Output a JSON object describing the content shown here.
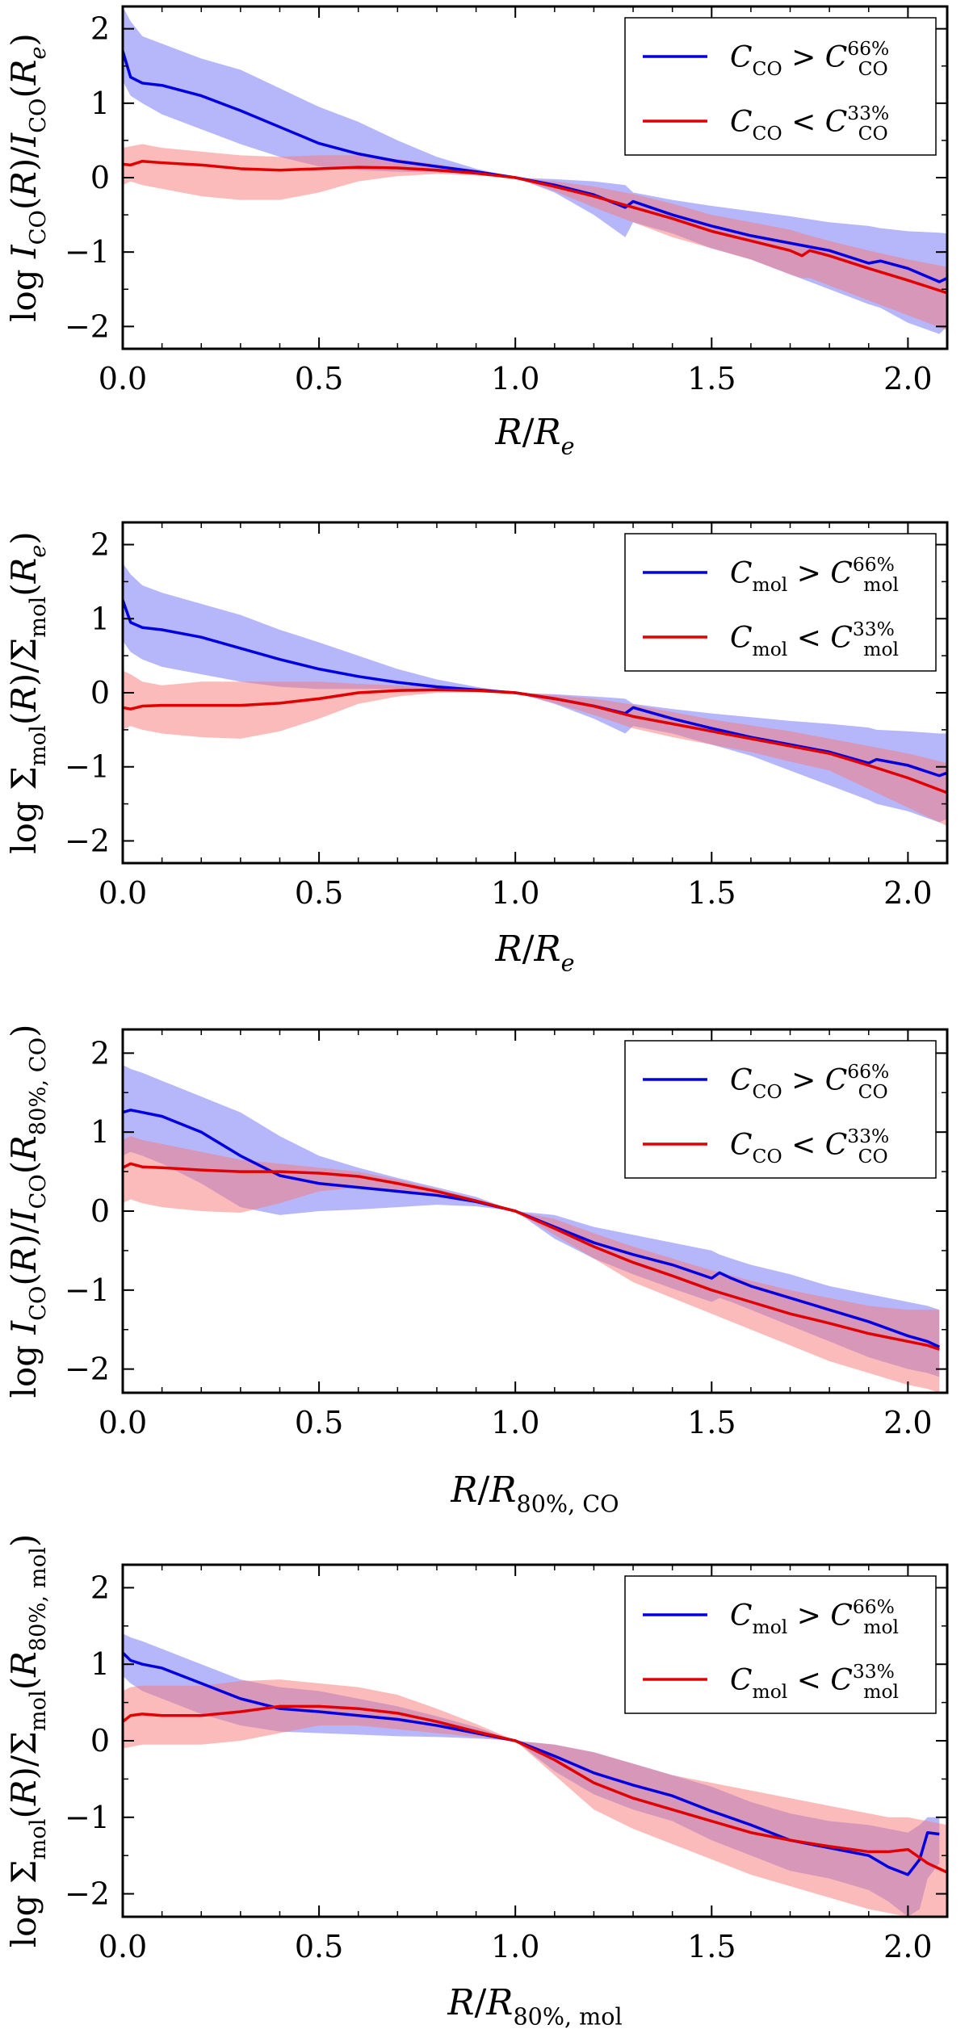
{
  "colors": {
    "blue": "#0000e0",
    "red": "#e00000",
    "blue_band": "#6e6ef8",
    "red_band": "#f87878"
  },
  "chart_data": [
    {
      "type": "line",
      "xlabel": "R/Re",
      "ylabel": "log ICO(R)/ICO(Re)",
      "xlim": [
        0.0,
        2.1
      ],
      "ylim": [
        -2.3,
        2.3
      ],
      "x_ticks": [
        "0.0",
        "0.5",
        "1.0",
        "1.5",
        "2.0"
      ],
      "y_ticks": [
        "2",
        "1",
        "0",
        "−1",
        "−2"
      ],
      "legend_position": "top-right",
      "series": [
        {
          "name": "CCO > C66%CO",
          "color": "blue",
          "x": [
            0.0,
            0.02,
            0.05,
            0.1,
            0.2,
            0.3,
            0.4,
            0.5,
            0.6,
            0.7,
            0.8,
            0.9,
            1.0,
            1.1,
            1.2,
            1.28,
            1.3,
            1.4,
            1.5,
            1.6,
            1.7,
            1.8,
            1.9,
            1.93,
            2.0,
            2.08,
            2.1
          ],
          "y": [
            1.7,
            1.35,
            1.27,
            1.24,
            1.1,
            0.9,
            0.68,
            0.46,
            0.32,
            0.22,
            0.15,
            0.08,
            0.0,
            -0.1,
            -0.23,
            -0.4,
            -0.32,
            -0.5,
            -0.65,
            -0.78,
            -0.88,
            -0.98,
            -1.15,
            -1.12,
            -1.22,
            -1.4,
            -1.35
          ],
          "band_upper": [
            2.3,
            2.1,
            1.9,
            1.8,
            1.6,
            1.45,
            1.2,
            0.95,
            0.75,
            0.5,
            0.28,
            0.12,
            0.0,
            -0.02,
            -0.05,
            -0.1,
            -0.2,
            -0.3,
            -0.38,
            -0.45,
            -0.52,
            -0.6,
            -0.65,
            -0.68,
            -0.72,
            -0.74,
            -0.75
          ],
          "band_lower": [
            1.3,
            1.1,
            1.0,
            0.85,
            0.65,
            0.45,
            0.28,
            0.15,
            0.1,
            0.08,
            0.07,
            0.05,
            0.0,
            -0.2,
            -0.5,
            -0.8,
            -0.6,
            -0.75,
            -0.95,
            -1.1,
            -1.3,
            -1.5,
            -1.7,
            -1.75,
            -1.95,
            -2.1,
            -2.0
          ]
        },
        {
          "name": "CCO < C33%CO",
          "color": "red",
          "x": [
            0.0,
            0.02,
            0.05,
            0.1,
            0.2,
            0.3,
            0.4,
            0.5,
            0.6,
            0.7,
            0.8,
            0.9,
            1.0,
            1.1,
            1.2,
            1.3,
            1.4,
            1.5,
            1.6,
            1.7,
            1.73,
            1.75,
            1.8,
            1.9,
            2.0,
            2.1
          ],
          "y": [
            0.18,
            0.17,
            0.22,
            0.2,
            0.17,
            0.12,
            0.1,
            0.12,
            0.14,
            0.13,
            0.1,
            0.06,
            0.0,
            -0.12,
            -0.25,
            -0.4,
            -0.55,
            -0.72,
            -0.85,
            -0.98,
            -1.05,
            -0.98,
            -1.05,
            -1.22,
            -1.38,
            -1.55
          ],
          "band_upper": [
            0.4,
            0.42,
            0.45,
            0.4,
            0.35,
            0.3,
            0.28,
            0.3,
            0.3,
            0.25,
            0.18,
            0.1,
            0.0,
            -0.05,
            -0.12,
            -0.22,
            -0.35,
            -0.5,
            -0.6,
            -0.7,
            -0.75,
            -0.78,
            -0.85,
            -0.98,
            -1.1,
            -1.2
          ],
          "band_lower": [
            -0.1,
            -0.05,
            -0.1,
            -0.15,
            -0.25,
            -0.3,
            -0.3,
            -0.2,
            -0.05,
            0.02,
            0.05,
            0.03,
            0.0,
            -0.18,
            -0.4,
            -0.6,
            -0.8,
            -0.95,
            -1.1,
            -1.3,
            -1.35,
            -1.35,
            -1.45,
            -1.65,
            -1.85,
            -2.05
          ]
        }
      ]
    },
    {
      "type": "line",
      "xlabel": "R/Re",
      "ylabel": "log Σmol(R)/Σmol(Re)",
      "xlim": [
        0.0,
        2.1
      ],
      "ylim": [
        -2.3,
        2.3
      ],
      "x_ticks": [
        "0.0",
        "0.5",
        "1.0",
        "1.5",
        "2.0"
      ],
      "y_ticks": [
        "2",
        "1",
        "0",
        "−1",
        "−2"
      ],
      "legend_position": "top-right",
      "series": [
        {
          "name": "Cmol > C66%mol",
          "color": "blue",
          "x": [
            0.0,
            0.02,
            0.05,
            0.1,
            0.2,
            0.3,
            0.4,
            0.5,
            0.6,
            0.7,
            0.8,
            0.9,
            1.0,
            1.1,
            1.2,
            1.28,
            1.3,
            1.4,
            1.5,
            1.6,
            1.7,
            1.8,
            1.9,
            1.92,
            2.0,
            2.08,
            2.1
          ],
          "y": [
            1.25,
            0.95,
            0.88,
            0.85,
            0.75,
            0.6,
            0.45,
            0.32,
            0.22,
            0.14,
            0.08,
            0.04,
            0.0,
            -0.08,
            -0.18,
            -0.28,
            -0.2,
            -0.35,
            -0.48,
            -0.6,
            -0.7,
            -0.8,
            -0.95,
            -0.9,
            -0.98,
            -1.12,
            -1.08
          ],
          "band_upper": [
            1.75,
            1.6,
            1.45,
            1.35,
            1.2,
            1.05,
            0.85,
            0.68,
            0.5,
            0.32,
            0.18,
            0.08,
            0.0,
            -0.02,
            -0.05,
            -0.08,
            -0.15,
            -0.22,
            -0.28,
            -0.33,
            -0.38,
            -0.42,
            -0.47,
            -0.5,
            -0.52,
            -0.55,
            -0.55
          ],
          "band_lower": [
            0.7,
            0.55,
            0.45,
            0.35,
            0.25,
            0.15,
            0.08,
            0.05,
            0.05,
            0.05,
            0.04,
            0.02,
            0.0,
            -0.15,
            -0.35,
            -0.55,
            -0.45,
            -0.55,
            -0.7,
            -0.85,
            -1.05,
            -1.25,
            -1.45,
            -1.5,
            -1.6,
            -1.75,
            -1.7
          ]
        },
        {
          "name": "Cmol < C33%mol",
          "color": "red",
          "x": [
            0.0,
            0.02,
            0.05,
            0.1,
            0.2,
            0.3,
            0.4,
            0.5,
            0.6,
            0.7,
            0.8,
            0.9,
            1.0,
            1.1,
            1.2,
            1.3,
            1.4,
            1.5,
            1.6,
            1.7,
            1.8,
            1.9,
            2.0,
            2.1
          ],
          "y": [
            -0.2,
            -0.22,
            -0.18,
            -0.17,
            -0.17,
            -0.17,
            -0.14,
            -0.08,
            0.0,
            0.03,
            0.04,
            0.03,
            0.0,
            -0.08,
            -0.18,
            -0.32,
            -0.42,
            -0.52,
            -0.62,
            -0.72,
            -0.82,
            -0.98,
            -1.15,
            -1.35
          ],
          "band_upper": [
            0.3,
            0.25,
            0.15,
            0.1,
            0.15,
            0.15,
            0.15,
            0.15,
            0.12,
            0.1,
            0.08,
            0.04,
            0.0,
            -0.03,
            -0.08,
            -0.16,
            -0.26,
            -0.36,
            -0.44,
            -0.52,
            -0.62,
            -0.72,
            -0.82,
            -0.95
          ],
          "band_lower": [
            -0.5,
            -0.45,
            -0.5,
            -0.55,
            -0.6,
            -0.62,
            -0.52,
            -0.35,
            -0.15,
            -0.05,
            0.0,
            0.01,
            0.0,
            -0.14,
            -0.3,
            -0.48,
            -0.6,
            -0.7,
            -0.8,
            -0.93,
            -1.05,
            -1.3,
            -1.55,
            -1.8
          ]
        }
      ]
    },
    {
      "type": "line",
      "xlabel": "R/R80%,CO",
      "ylabel": "log ICO(R)/ICO(R80%,CO)",
      "xlim": [
        0.0,
        2.1
      ],
      "ylim": [
        -2.3,
        2.3
      ],
      "x_ticks": [
        "0.0",
        "0.5",
        "1.0",
        "1.5",
        "2.0"
      ],
      "y_ticks": [
        "2",
        "1",
        "0",
        "−1",
        "−2"
      ],
      "legend_position": "top-right",
      "series": [
        {
          "name": "CCO > C66%CO",
          "color": "blue",
          "x": [
            0.0,
            0.02,
            0.05,
            0.1,
            0.2,
            0.3,
            0.4,
            0.5,
            0.6,
            0.7,
            0.8,
            0.9,
            1.0,
            1.1,
            1.2,
            1.3,
            1.4,
            1.5,
            1.52,
            1.55,
            1.6,
            1.7,
            1.8,
            1.9,
            2.0,
            2.05,
            2.08
          ],
          "y": [
            1.25,
            1.28,
            1.25,
            1.2,
            1.0,
            0.7,
            0.45,
            0.35,
            0.3,
            0.25,
            0.2,
            0.12,
            0.0,
            -0.2,
            -0.4,
            -0.55,
            -0.68,
            -0.85,
            -0.78,
            -0.85,
            -0.95,
            -1.1,
            -1.25,
            -1.4,
            -1.58,
            -1.65,
            -1.72
          ],
          "band_upper": [
            1.85,
            1.8,
            1.75,
            1.65,
            1.45,
            1.25,
            0.95,
            0.7,
            0.55,
            0.42,
            0.3,
            0.18,
            0.0,
            -0.05,
            -0.2,
            -0.3,
            -0.4,
            -0.5,
            -0.55,
            -0.6,
            -0.68,
            -0.8,
            -0.95,
            -1.05,
            -1.15,
            -1.2,
            -1.25
          ],
          "band_lower": [
            0.7,
            0.75,
            0.7,
            0.6,
            0.35,
            0.05,
            -0.05,
            0.0,
            0.02,
            0.05,
            0.08,
            0.06,
            0.0,
            -0.35,
            -0.6,
            -0.8,
            -0.98,
            -1.15,
            -1.1,
            -1.15,
            -1.25,
            -1.45,
            -1.65,
            -1.85,
            -2.0,
            -2.05,
            -2.1
          ]
        },
        {
          "name": "CCO < C33%CO",
          "color": "red",
          "x": [
            0.0,
            0.02,
            0.05,
            0.1,
            0.2,
            0.3,
            0.4,
            0.5,
            0.6,
            0.7,
            0.8,
            0.9,
            1.0,
            1.1,
            1.2,
            1.3,
            1.4,
            1.5,
            1.6,
            1.7,
            1.8,
            1.9,
            2.0,
            2.05,
            2.08
          ],
          "y": [
            0.55,
            0.6,
            0.56,
            0.55,
            0.52,
            0.5,
            0.5,
            0.48,
            0.44,
            0.35,
            0.25,
            0.13,
            0.0,
            -0.22,
            -0.45,
            -0.65,
            -0.82,
            -1.0,
            -1.15,
            -1.3,
            -1.42,
            -1.55,
            -1.65,
            -1.7,
            -1.75
          ],
          "band_upper": [
            0.9,
            0.95,
            0.9,
            0.85,
            0.75,
            0.65,
            0.6,
            0.55,
            0.5,
            0.4,
            0.28,
            0.15,
            0.0,
            -0.1,
            -0.28,
            -0.45,
            -0.6,
            -0.75,
            -0.88,
            -1.0,
            -1.1,
            -1.2,
            -1.25,
            -1.25,
            -1.25
          ],
          "band_lower": [
            0.1,
            0.15,
            0.1,
            0.05,
            0.0,
            -0.02,
            0.1,
            0.25,
            0.3,
            0.25,
            0.18,
            0.1,
            0.0,
            -0.3,
            -0.6,
            -0.9,
            -1.1,
            -1.3,
            -1.5,
            -1.7,
            -1.9,
            -2.05,
            -2.2,
            -2.25,
            -2.3
          ]
        }
      ]
    },
    {
      "type": "line",
      "xlabel": "R/R80%,mol",
      "ylabel": "log Σmol(R)/Σmol(R80%,mol)",
      "xlim": [
        0.0,
        2.1
      ],
      "ylim": [
        -2.3,
        2.3
      ],
      "x_ticks": [
        "0.0",
        "0.5",
        "1.0",
        "1.5",
        "2.0"
      ],
      "y_ticks": [
        "2",
        "1",
        "0",
        "−1",
        "−2"
      ],
      "legend_position": "top-right",
      "series": [
        {
          "name": "Cmol > C66%mol",
          "color": "blue",
          "x": [
            0.0,
            0.02,
            0.05,
            0.1,
            0.2,
            0.3,
            0.4,
            0.5,
            0.6,
            0.7,
            0.8,
            0.9,
            1.0,
            1.1,
            1.2,
            1.3,
            1.4,
            1.5,
            1.6,
            1.7,
            1.8,
            1.9,
            1.95,
            2.0,
            2.03,
            2.05,
            2.08
          ],
          "y": [
            1.15,
            1.05,
            1.0,
            0.95,
            0.75,
            0.55,
            0.42,
            0.38,
            0.33,
            0.28,
            0.2,
            0.1,
            0.0,
            -0.2,
            -0.42,
            -0.58,
            -0.72,
            -0.92,
            -1.1,
            -1.3,
            -1.4,
            -1.5,
            -1.65,
            -1.75,
            -1.55,
            -1.2,
            -1.22
          ],
          "band_upper": [
            1.4,
            1.35,
            1.3,
            1.2,
            1.0,
            0.8,
            0.7,
            0.65,
            0.55,
            0.45,
            0.32,
            0.18,
            0.0,
            -0.05,
            -0.15,
            -0.3,
            -0.45,
            -0.6,
            -0.8,
            -0.95,
            -1.05,
            -1.1,
            -1.15,
            -1.2,
            -1.1,
            -1.0,
            -1.0
          ],
          "band_lower": [
            0.85,
            0.75,
            0.65,
            0.55,
            0.35,
            0.2,
            0.12,
            0.1,
            0.08,
            0.06,
            0.05,
            0.03,
            0.0,
            -0.4,
            -0.7,
            -0.9,
            -1.05,
            -1.3,
            -1.5,
            -1.7,
            -1.8,
            -1.95,
            -2.1,
            -2.3,
            -2.2,
            -1.8,
            -1.6
          ]
        },
        {
          "name": "Cmol < C33%mol",
          "color": "red",
          "x": [
            0.0,
            0.02,
            0.05,
            0.1,
            0.2,
            0.3,
            0.4,
            0.5,
            0.6,
            0.7,
            0.8,
            0.9,
            1.0,
            1.1,
            1.2,
            1.3,
            1.4,
            1.5,
            1.6,
            1.7,
            1.8,
            1.9,
            1.95,
            2.0,
            2.05,
            2.1
          ],
          "y": [
            0.25,
            0.33,
            0.35,
            0.33,
            0.33,
            0.38,
            0.45,
            0.45,
            0.42,
            0.36,
            0.25,
            0.12,
            0.0,
            -0.25,
            -0.55,
            -0.75,
            -0.9,
            -1.05,
            -1.2,
            -1.3,
            -1.38,
            -1.45,
            -1.45,
            -1.42,
            -1.6,
            -1.72
          ],
          "band_upper": [
            0.65,
            0.7,
            0.72,
            0.72,
            0.72,
            0.78,
            0.8,
            0.75,
            0.7,
            0.6,
            0.42,
            0.22,
            0.0,
            -0.05,
            -0.15,
            -0.3,
            -0.45,
            -0.55,
            -0.65,
            -0.75,
            -0.85,
            -0.95,
            -1.0,
            -1.0,
            -1.05,
            -1.1
          ],
          "band_lower": [
            -0.1,
            -0.08,
            -0.05,
            -0.05,
            -0.05,
            0.0,
            0.1,
            0.2,
            0.2,
            0.15,
            0.1,
            0.05,
            0.0,
            -0.45,
            -0.9,
            -1.15,
            -1.35,
            -1.55,
            -1.75,
            -1.9,
            -2.05,
            -2.2,
            -2.25,
            -2.3,
            -2.3,
            -2.3
          ]
        }
      ]
    }
  ]
}
